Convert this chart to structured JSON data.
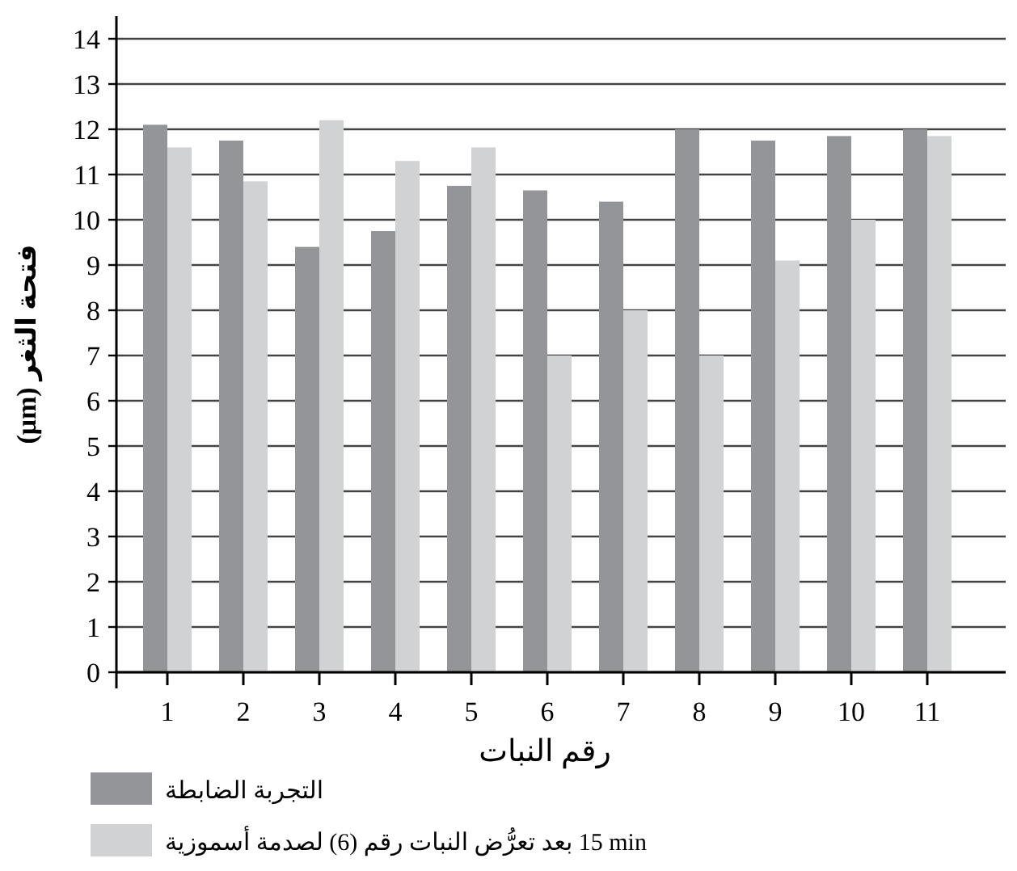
{
  "chart_data": {
    "type": "bar",
    "xlabel": "رقم النبات",
    "ylabel": "فتحة الثغر (μm)",
    "categories": [
      "1",
      "2",
      "3",
      "4",
      "5",
      "6",
      "7",
      "8",
      "9",
      "10",
      "11"
    ],
    "series": [
      {
        "name": "التجربة الضابطة",
        "color": "#949599",
        "values": [
          12.1,
          11.75,
          9.4,
          9.75,
          10.75,
          10.65,
          10.4,
          12,
          11.75,
          11.85,
          12
        ]
      },
      {
        "name": "15 min بعد تعرُّض النبات رقم (6) لصدمة أسموزية",
        "color": "#d1d2d4",
        "values": [
          11.6,
          10.85,
          12.2,
          11.3,
          11.6,
          7,
          8,
          7,
          9.1,
          10,
          11.85
        ]
      }
    ],
    "ylim": [
      0,
      14.5
    ],
    "yticks": [
      0,
      1,
      2,
      3,
      4,
      5,
      6,
      7,
      8,
      9,
      10,
      11,
      12,
      13,
      14
    ],
    "grid": "y",
    "legend": "bottom left"
  }
}
